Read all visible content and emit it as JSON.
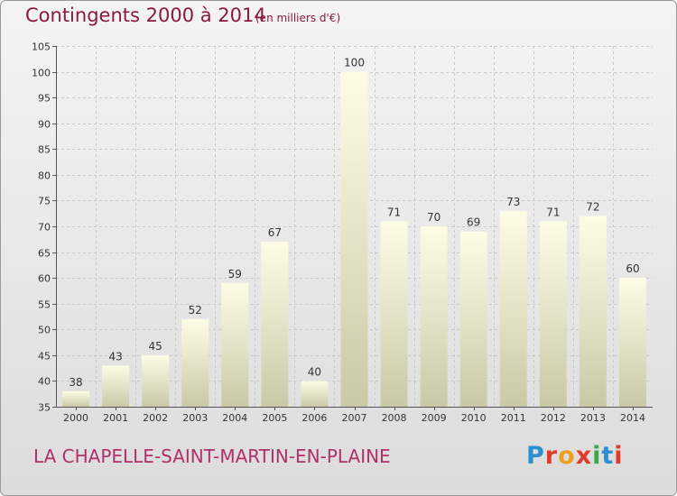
{
  "header": {
    "title": "Contingents 2000 à 2014",
    "subtitle": "(en milliers d'€)"
  },
  "footer": {
    "commune": "LA CHAPELLE-SAINT-MARTIN-EN-PLAINE",
    "logo": "Proxiti",
    "logo_colors": [
      "#2a8fd0",
      "#e23a2a",
      "#f0a020",
      "#e23a2a",
      "#3aa84a",
      "#2a8fd0",
      "#e23a2a"
    ]
  },
  "colors": {
    "bar_light": "#fdfde6",
    "bar_dark": "#c9c9a8",
    "axis_text": "#333333",
    "grid": "#c8c8c8"
  },
  "chart_data": {
    "type": "bar",
    "title": "Contingents 2000 à 2014",
    "subtitle": "(en milliers d'€)",
    "categories": [
      "2000",
      "2001",
      "2002",
      "2003",
      "2004",
      "2005",
      "2006",
      "2007",
      "2008",
      "2009",
      "2010",
      "2011",
      "2012",
      "2013",
      "2014"
    ],
    "values": [
      38,
      43,
      45,
      52,
      59,
      67,
      40,
      100,
      71,
      70,
      69,
      73,
      71,
      72,
      60
    ],
    "ylim": [
      35,
      105
    ],
    "yticks": [
      35,
      40,
      45,
      50,
      55,
      60,
      65,
      70,
      75,
      80,
      85,
      90,
      95,
      100,
      105
    ],
    "grid": "horizontal dashed",
    "data_labels": true
  }
}
